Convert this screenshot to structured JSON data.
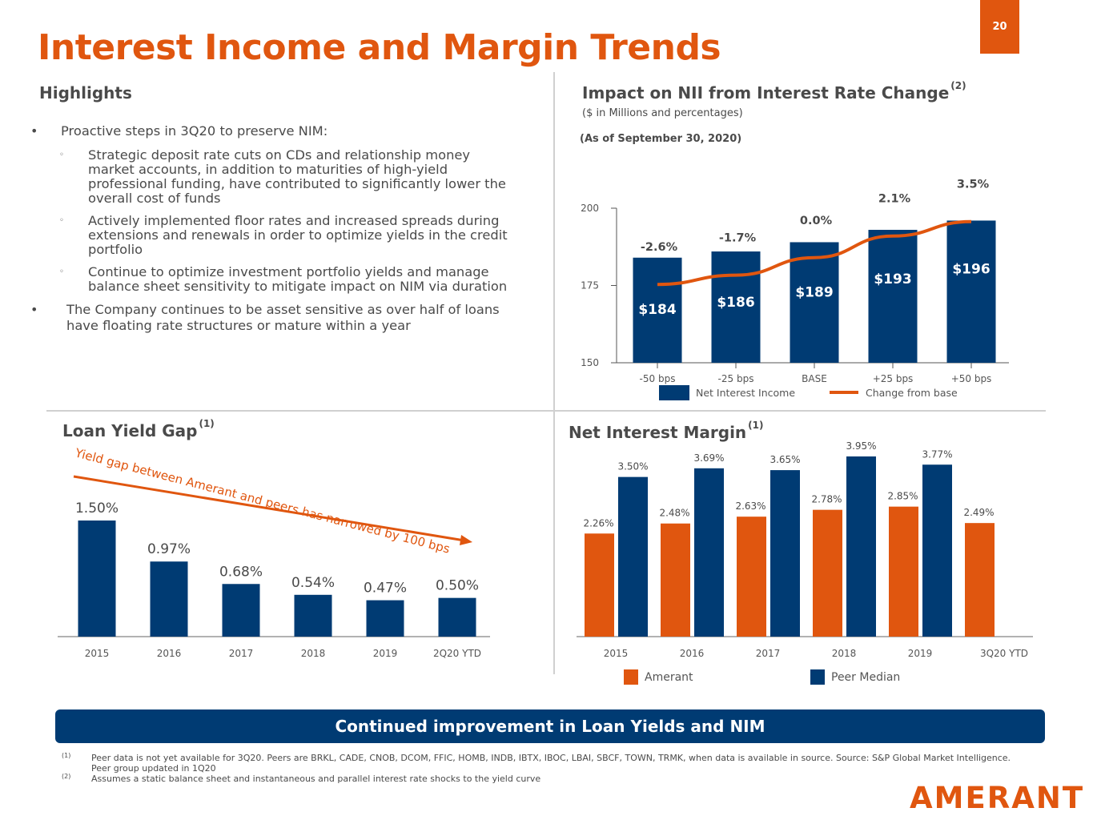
{
  "page": {
    "title": "Interest Income and Margin Trends",
    "page_number": "20",
    "logo": "AMERANT",
    "brand_orange": "#e0560f",
    "brand_navy": "#003b73"
  },
  "highlights": {
    "heading": "Highlights",
    "bullets": [
      {
        "text": "Proactive steps in 3Q20 to preserve NIM:",
        "sub": [
          "Strategic deposit rate cuts on CDs and relationship money market accounts, in addition to maturities of high-yield professional funding, have contributed to significantly lower the overall cost of funds",
          "Actively implemented floor rates and increased spreads during extensions and renewals in order to optimize yields in the credit portfolio",
          "Continue to optimize investment portfolio yields and manage balance sheet sensitivity to mitigate impact on NIM via duration"
        ]
      },
      {
        "text": "The Company continues to be asset sensitive as over half of loans have floating rate structures or mature within a year",
        "sub": []
      }
    ]
  },
  "nii_section": {
    "heading": "Impact on NII from Interest Rate Change",
    "heading_note": "(2)",
    "subtitle": "($ in Millions and percentages)",
    "as_of": "(As of September 30, 2020)"
  },
  "loan_section": {
    "heading": "Loan Yield Gap",
    "heading_note": "(1)"
  },
  "nim_section": {
    "heading": "Net Interest Margin",
    "heading_note": "(1)"
  },
  "callout": "Continued improvement in Loan Yields and NIM",
  "footnotes": [
    {
      "mark": "(1)",
      "text": "Peer data is not yet available for 3Q20. Peers are BRKL, CADE, CNOB, DCOM, FFIC, HOMB, INDB, IBTX, IBOC, LBAI, SBCF, TOWN, TRMK, when data is available in source. Source: S&P Global Market Intelligence.  Peer group updated in 1Q20"
    },
    {
      "mark": "(2)",
      "text": "Assumes a static balance sheet and instantaneous and parallel interest rate shocks to the yield curve"
    }
  ],
  "chart_data": [
    {
      "id": "nii",
      "type": "bar",
      "title": "Impact on NII from Interest Rate Change",
      "categories": [
        "-50 bps",
        "-25 bps",
        "BASE",
        "+25 bps",
        "+50 bps"
      ],
      "series": [
        {
          "name": "Net Interest Income",
          "type": "bar",
          "color": "#003b73",
          "values": [
            184,
            186,
            189,
            193,
            196
          ],
          "labels": [
            "$184",
            "$186",
            "$189",
            "$193",
            "$196"
          ]
        },
        {
          "name": "Change from base",
          "type": "line",
          "color": "#e0560f",
          "values": [
            -2.6,
            -1.7,
            0.0,
            2.1,
            3.5
          ],
          "labels": [
            "-2.6%",
            "-1.7%",
            "0.0%",
            "2.1%",
            "3.5%"
          ]
        }
      ],
      "yticks": [
        "150",
        "175",
        "200"
      ],
      "ylim": [
        150,
        200
      ],
      "legend": "bottom"
    },
    {
      "id": "loan_yield_gap",
      "type": "bar",
      "title": "Loan Yield Gap",
      "categories": [
        "2015",
        "2016",
        "2017",
        "2018",
        "2019",
        "2Q20 YTD"
      ],
      "values": [
        1.5,
        0.97,
        0.68,
        0.54,
        0.47,
        0.5
      ],
      "labels": [
        "1.50%",
        "0.97%",
        "0.68%",
        "0.54%",
        "0.47%",
        "0.50%"
      ],
      "color": "#003b73",
      "annotation": "Yield gap between Amerant and peers has narrowed by 100 bps",
      "ylim": [
        0,
        1.6
      ]
    },
    {
      "id": "nim",
      "type": "bar",
      "title": "Net Interest Margin",
      "categories": [
        "2015",
        "2016",
        "2017",
        "2018",
        "2019",
        "3Q20 YTD"
      ],
      "series": [
        {
          "name": "Amerant",
          "color": "#e0560f",
          "values": [
            2.26,
            2.48,
            2.63,
            2.78,
            2.85,
            2.49
          ],
          "labels": [
            "2.26%",
            "2.48%",
            "2.63%",
            "2.78%",
            "2.85%",
            "2.49%"
          ]
        },
        {
          "name": "Peer Median",
          "color": "#003b73",
          "values": [
            3.5,
            3.69,
            3.65,
            3.95,
            3.77,
            null
          ],
          "labels": [
            "3.50%",
            "3.69%",
            "3.65%",
            "3.95%",
            "3.77%",
            ""
          ]
        }
      ],
      "ylim": [
        0,
        4.15
      ],
      "legend": "bottom"
    }
  ]
}
